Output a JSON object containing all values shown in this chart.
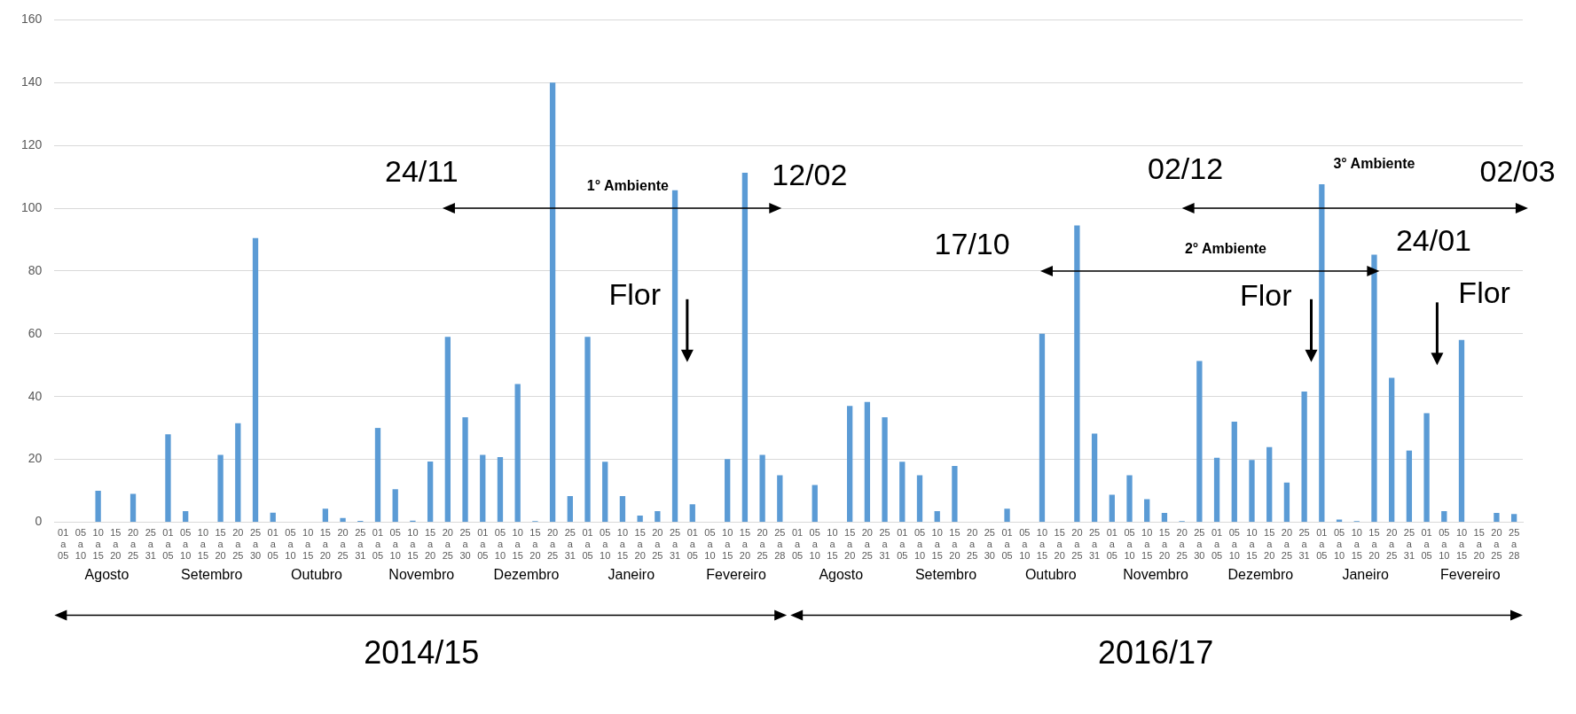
{
  "chart_data": {
    "type": "bar",
    "categories": [
      "01\na\n05",
      "05\na\n10",
      "10\na\n15",
      "15\na\n20",
      "20\na\n25",
      "25\na\n31",
      "01\na\n05",
      "05\na\n10",
      "10\na\n15",
      "15\na\n20",
      "20\na\n25",
      "25\na\n30",
      "01\na\n05",
      "05\na\n10",
      "10\na\n15",
      "15\na\n20",
      "20\na\n25",
      "25\na\n31",
      "01\na\n05",
      "05\na\n10",
      "10\na\n15",
      "15\na\n20",
      "20\na\n25",
      "25\na\n30",
      "01\na\n05",
      "05\na\n10",
      "10\na\n15",
      "15\na\n20",
      "20\na\n25",
      "25\na\n31",
      "01\na\n05",
      "05\na\n10",
      "10\na\n15",
      "15\na\n20",
      "20\na\n25",
      "25\na\n31",
      "01\na\n05",
      "05\na\n10",
      "10\na\n15",
      "15\na\n20",
      "20\na\n25",
      "25\na\n28",
      "01\na\n05",
      "05\na\n10",
      "10\na\n15",
      "15\na\n20",
      "20\na\n25",
      "25\na\n31",
      "01\na\n05",
      "05\na\n10",
      "10\na\n15",
      "15\na\n20",
      "20\na\n25",
      "25\na\n30",
      "01\na\n05",
      "05\na\n10",
      "10\na\n15",
      "15\na\n20",
      "20\na\n25",
      "25\na\n31",
      "01\na\n05",
      "05\na\n10",
      "10\na\n15",
      "15\na\n20",
      "20\na\n25",
      "25\na\n30",
      "01\na\n05",
      "05\na\n10",
      "10\na\n15",
      "15\na\n20",
      "20\na\n25",
      "25\na\n31",
      "01\na\n05",
      "05\na\n10",
      "10\na\n15",
      "15\na\n20",
      "20\na\n25",
      "25\na\n31",
      "01\na\n05",
      "05\na\n10",
      "10\na\n15",
      "15\na\n20",
      "20\na\n25",
      "25\na\n28"
    ],
    "values": [
      0,
      0,
      10,
      0,
      9,
      0,
      28,
      3.5,
      0,
      21.4,
      31.5,
      90.5,
      3,
      0,
      0,
      4.3,
      1.3,
      0.4,
      30,
      10.5,
      0.5,
      19.3,
      59,
      33.4,
      21.4,
      20.7,
      44,
      0.3,
      140,
      8.3,
      59,
      19.2,
      8.3,
      2.1,
      3.5,
      105.7,
      5.7,
      0,
      20.1,
      111.3,
      21.4,
      14.9,
      0,
      11.8,
      0,
      37,
      38.3,
      33.4,
      19.2,
      14.9,
      3.5,
      17.9,
      0,
      0,
      4.3,
      0,
      60,
      0,
      94.5,
      28.2,
      8.7,
      14.9,
      7.3,
      2.9,
      0.3,
      51.3,
      20.5,
      32,
      19.8,
      23.9,
      12.6,
      41.6,
      107.6,
      0.8,
      0.3,
      85.2,
      46,
      22.8,
      34.7,
      3.5,
      58,
      0,
      2.9,
      2.6
    ],
    "color": "#5b9bd5",
    "ylim": [
      0,
      160
    ],
    "yticks": [
      0,
      20,
      40,
      60,
      80,
      100,
      120,
      140,
      160
    ],
    "grid": "y",
    "legend": false,
    "annotations": [
      "Agosto",
      "Setembro",
      "Outubro",
      "Novembro",
      "Dezembro",
      "Janeiro",
      "Fevereiro",
      "Agosto",
      "Setembro",
      "Outubro",
      "Novembro",
      "Dezembro",
      "Janeiro",
      "Fevereiro",
      "2014/15",
      "2016/17",
      "24/11",
      "1° Ambiente",
      "12/02",
      "Flor",
      "17/10",
      "2° Ambiente",
      "24/01",
      "Flor",
      "Flor",
      "02/12",
      "3° Ambiente",
      "02/03"
    ]
  }
}
